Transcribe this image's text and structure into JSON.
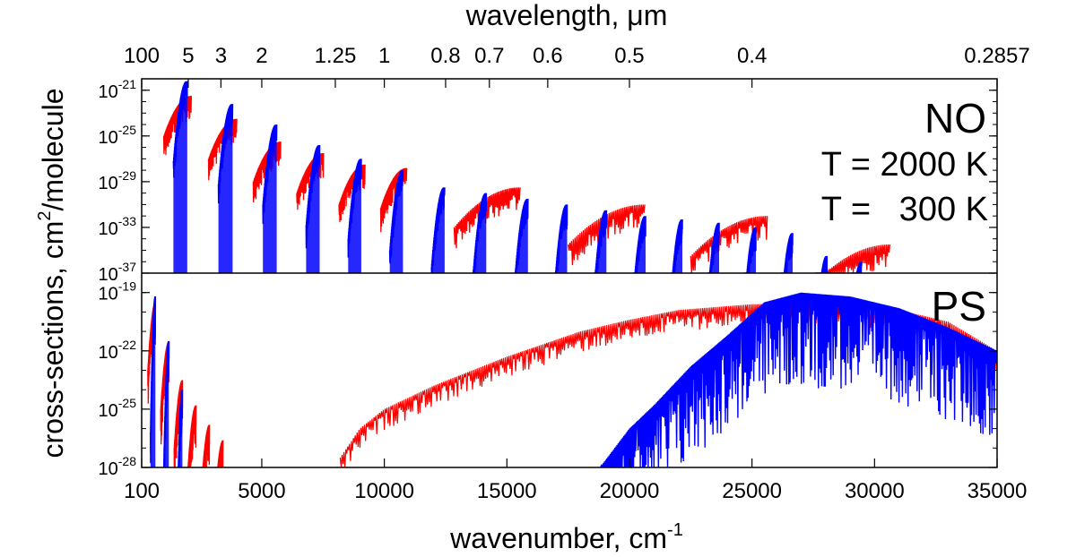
{
  "chart_data": {
    "type": "line",
    "top_axis": {
      "title": "wavelength, μm",
      "ticks": [
        {
          "label": "100",
          "wavenumber": 100
        },
        {
          "label": "5",
          "wavenumber": 2000
        },
        {
          "label": "3",
          "wavenumber": 3333
        },
        {
          "label": "2",
          "wavenumber": 5000
        },
        {
          "label": "1.25",
          "wavenumber": 8000
        },
        {
          "label": "1",
          "wavenumber": 10000
        },
        {
          "label": "0.8",
          "wavenumber": 12500
        },
        {
          "label": "0.7",
          "wavenumber": 14286
        },
        {
          "label": "0.6",
          "wavenumber": 16667
        },
        {
          "label": "0.5",
          "wavenumber": 20000
        },
        {
          "label": "0.4",
          "wavenumber": 25000
        },
        {
          "label": "0.2857",
          "wavenumber": 35000
        }
      ]
    },
    "x_axis": {
      "title": "wavenumber, cm",
      "title_sup": "-1",
      "range": [
        100,
        35000
      ],
      "ticks": [
        {
          "label": "100",
          "value": 100
        },
        {
          "label": "5000",
          "value": 5000
        },
        {
          "label": "10000",
          "value": 10000
        },
        {
          "label": "15000",
          "value": 15000
        },
        {
          "label": "20000",
          "value": 20000
        },
        {
          "label": "25000",
          "value": 25000
        },
        {
          "label": "30000",
          "value": 30000
        },
        {
          "label": "35000",
          "value": 35000
        }
      ]
    },
    "y_axis": {
      "title_main": "cross-sections, cm",
      "title_sup": "2",
      "title_rest": "/molecule",
      "scale": "log"
    },
    "panels": [
      {
        "name": "NO",
        "label": "NO",
        "log_range": [
          -37,
          -20
        ],
        "y_ticks": [
          {
            "base": "10",
            "exp": "-21",
            "value": -21
          },
          {
            "base": "10",
            "exp": "-25",
            "value": -25
          },
          {
            "base": "10",
            "exp": "-29",
            "value": -29
          },
          {
            "base": "10",
            "exp": "-33",
            "value": -33
          },
          {
            "base": "10",
            "exp": "-37",
            "value": -37
          }
        ],
        "series": [
          {
            "name": "T = 2000 K",
            "color": "#ff0000",
            "band_peaks": [
              {
                "wavenumber": 1900,
                "log_value": -21.5
              },
              {
                "wavenumber": 3750,
                "log_value": -23.5
              },
              {
                "wavenumber": 5550,
                "log_value": -25.5
              },
              {
                "wavenumber": 7300,
                "log_value": -26.5
              },
              {
                "wavenumber": 9000,
                "log_value": -27.5
              },
              {
                "wavenumber": 10700,
                "log_value": -27.8
              },
              {
                "wavenumber": 15000,
                "log_value": -29.5
              },
              {
                "wavenumber": 20000,
                "log_value": -31.0
              },
              {
                "wavenumber": 25000,
                "log_value": -32.0
              },
              {
                "wavenumber": 30000,
                "log_value": -34.5
              }
            ]
          },
          {
            "name": "T = 300 K",
            "color": "#0000ff",
            "band_peaks": [
              {
                "wavenumber": 1900,
                "log_value": -20.2
              },
              {
                "wavenumber": 3750,
                "log_value": -22.2
              },
              {
                "wavenumber": 5550,
                "log_value": -24.0
              },
              {
                "wavenumber": 7300,
                "log_value": -25.8
              },
              {
                "wavenumber": 9000,
                "log_value": -27.0
              },
              {
                "wavenumber": 10700,
                "log_value": -28.0
              },
              {
                "wavenumber": 12400,
                "log_value": -29.5
              },
              {
                "wavenumber": 14100,
                "log_value": -30.0
              },
              {
                "wavenumber": 15800,
                "log_value": -30.5
              },
              {
                "wavenumber": 17400,
                "log_value": -31.0
              },
              {
                "wavenumber": 19000,
                "log_value": -31.5
              },
              {
                "wavenumber": 20600,
                "log_value": -32.0
              },
              {
                "wavenumber": 22100,
                "log_value": -32.3
              },
              {
                "wavenumber": 23600,
                "log_value": -32.6
              },
              {
                "wavenumber": 25100,
                "log_value": -33.0
              },
              {
                "wavenumber": 26600,
                "log_value": -33.5
              },
              {
                "wavenumber": 28000,
                "log_value": -35.5
              },
              {
                "wavenumber": 29400,
                "log_value": -36.0
              }
            ]
          }
        ],
        "legend": [
          {
            "text": "T = 2000 K",
            "color": "#ff0000"
          },
          {
            "text": "T =   300 K",
            "color": "#0000ff"
          }
        ]
      },
      {
        "name": "PS",
        "label": "PS",
        "log_range": [
          -28,
          -18
        ],
        "y_ticks": [
          {
            "base": "10",
            "exp": "-19",
            "value": -19
          },
          {
            "base": "10",
            "exp": "-22",
            "value": -22
          },
          {
            "base": "10",
            "exp": "-25",
            "value": -25
          },
          {
            "base": "10",
            "exp": "-28",
            "value": -28
          }
        ],
        "series": [
          {
            "name": "T = 2000 K",
            "color": "#ff0000",
            "band_peaks": [
              {
                "wavenumber": 600,
                "log_value": -19.5
              },
              {
                "wavenumber": 1150,
                "log_value": -21.5
              },
              {
                "wavenumber": 1700,
                "log_value": -23.5
              },
              {
                "wavenumber": 2250,
                "log_value": -24.8
              },
              {
                "wavenumber": 2800,
                "log_value": -25.8
              },
              {
                "wavenumber": 3350,
                "log_value": -26.6
              }
            ],
            "continuum": [
              [
                8200,
                -27.5
              ],
              [
                9000,
                -26.0
              ],
              [
                10000,
                -25.0
              ],
              [
                12000,
                -23.8
              ],
              [
                15000,
                -22.3
              ],
              [
                18000,
                -21.0
              ],
              [
                20000,
                -20.4
              ],
              [
                22000,
                -19.9
              ],
              [
                25000,
                -19.6
              ],
              [
                28000,
                -19.6
              ],
              [
                31000,
                -19.9
              ],
              [
                33000,
                -20.5
              ],
              [
                35000,
                -22.0
              ]
            ]
          },
          {
            "name": "T = 300 K",
            "color": "#0000ff",
            "band_peaks": [
              {
                "wavenumber": 600,
                "log_value": -19.2
              },
              {
                "wavenumber": 1150,
                "log_value": -21.5
              },
              {
                "wavenumber": 1700,
                "log_value": -24.0
              }
            ],
            "continuum": [
              [
                18800,
                -28.0
              ],
              [
                20000,
                -26.0
              ],
              [
                21000,
                -24.8
              ],
              [
                22500,
                -22.8
              ],
              [
                24000,
                -21.2
              ],
              [
                25500,
                -19.5
              ],
              [
                27000,
                -19.0
              ],
              [
                29000,
                -19.2
              ],
              [
                31000,
                -19.8
              ],
              [
                33000,
                -20.8
              ],
              [
                35000,
                -22.0
              ]
            ]
          }
        ]
      }
    ]
  }
}
